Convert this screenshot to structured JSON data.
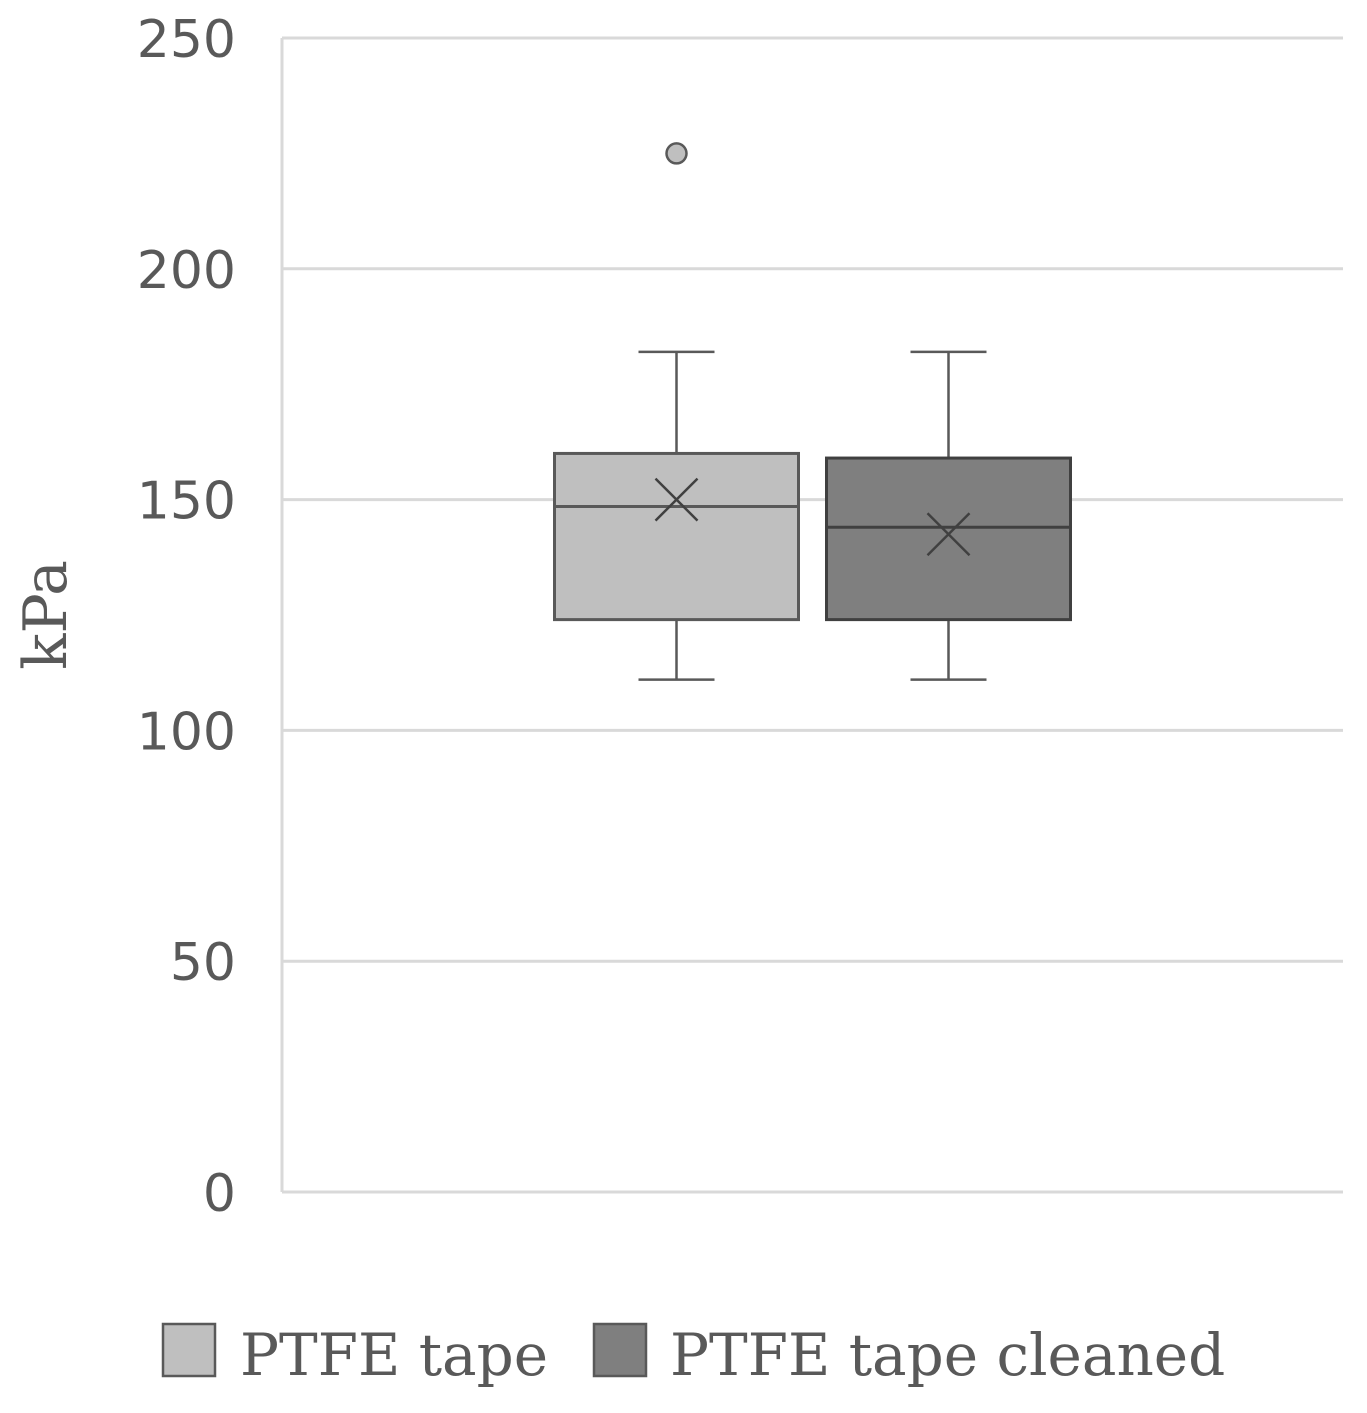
{
  "chart_data": {
    "type": "box",
    "title": "",
    "xlabel": "",
    "ylabel": "kPa",
    "ylim": [
      0,
      250
    ],
    "yticks": [
      0,
      50,
      100,
      150,
      200,
      250
    ],
    "grid": true,
    "legend_position": "bottom",
    "series": [
      {
        "name": "PTFE tape",
        "color": "#bfbfbf",
        "min": 111,
        "q1": 124,
        "median": 148.5,
        "q3": 160,
        "max": 182,
        "mean": 150,
        "outliers": [
          225
        ]
      },
      {
        "name": "PTFE tape cleaned",
        "color": "#7f7f7f",
        "min": 111,
        "q1": 124,
        "median": 144,
        "q3": 159,
        "max": 182,
        "mean": 142.5,
        "outliers": []
      }
    ]
  }
}
